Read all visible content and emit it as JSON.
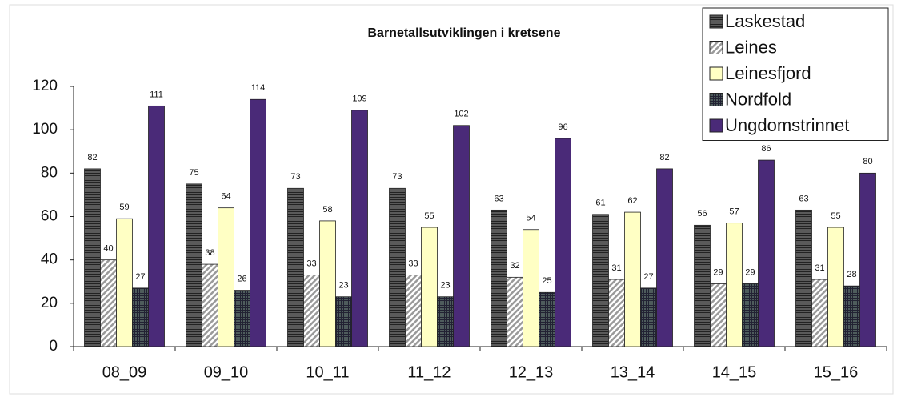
{
  "chart_data": {
    "type": "bar",
    "title": "Barnetallsutviklingen i kretsene",
    "categories": [
      "08_09",
      "09_10",
      "10_11",
      "11_12",
      "12_13",
      "13_14",
      "14_15",
      "15_16"
    ],
    "series": [
      {
        "name": "Laskestad",
        "color": "#5a5a5a",
        "values": [
          82,
          75,
          73,
          73,
          63,
          61,
          56,
          63
        ]
      },
      {
        "name": "Leines",
        "color": "#9a9a9a",
        "values": [
          40,
          38,
          33,
          33,
          32,
          31,
          29,
          31
        ]
      },
      {
        "name": "Leinesfjord",
        "color": "#ffffc4",
        "values": [
          59,
          64,
          58,
          55,
          54,
          62,
          57,
          55
        ]
      },
      {
        "name": "Nordfold",
        "color": "#4e5c5c",
        "values": [
          27,
          26,
          23,
          23,
          25,
          27,
          29,
          28
        ]
      },
      {
        "name": "Ungdomstrinnet",
        "color": "#4a2a78",
        "values": [
          111,
          114,
          109,
          102,
          96,
          82,
          86,
          80
        ]
      }
    ],
    "ylim": [
      0,
      120
    ],
    "yticks": [
      0,
      20,
      40,
      60,
      80,
      100,
      120
    ],
    "grid": false,
    "legend": "top-right",
    "value_labels_shown": true
  }
}
